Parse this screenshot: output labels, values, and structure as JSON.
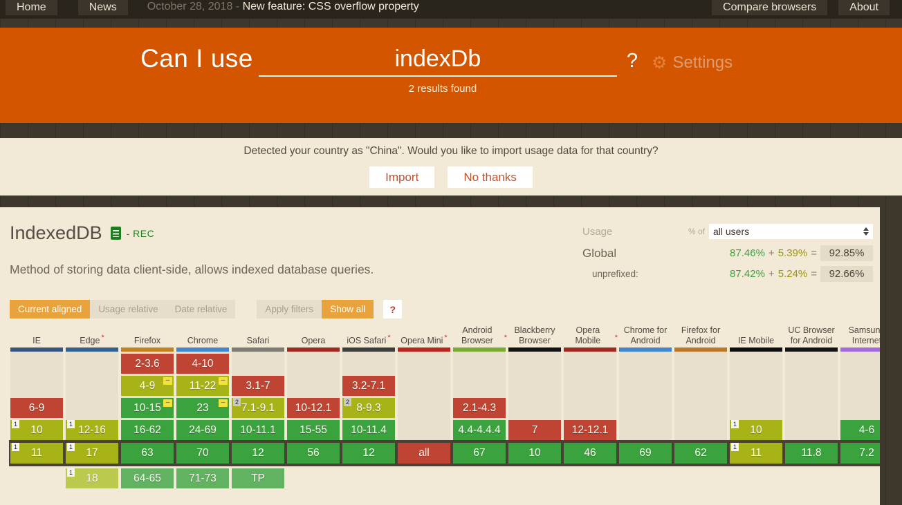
{
  "topbar": {
    "home": "Home",
    "news": "News",
    "date": "October 28, 2018 - ",
    "feature": "New feature: CSS overflow property",
    "compare": "Compare browsers",
    "about": "About"
  },
  "hero": {
    "brand": "Can I use",
    "query": "indexDb",
    "help": "?",
    "settings": "Settings",
    "results": "2 results found",
    "accent_color": "#d45500"
  },
  "country_banner": {
    "message": "Detected your country as \"China\". Would you like to import usage data for that country?",
    "import": "Import",
    "no_thanks": "No thanks"
  },
  "feature": {
    "title": "IndexedDB",
    "status": "- REC",
    "description": "Method of storing data client-side, allows indexed database queries."
  },
  "usage": {
    "label": "Usage",
    "percent_of": "% of",
    "selected_option": "all users",
    "global_label": "Global",
    "global_full": "87.46%",
    "global_partial": "5.39%",
    "global_total": "92.85%",
    "unprefixed_label": "unprefixed:",
    "unprefixed_full": "87.42%",
    "unprefixed_partial": "5.24%",
    "unprefixed_total": "92.66%",
    "plus": "+",
    "equals": "="
  },
  "filters": {
    "current_aligned": "Current aligned",
    "usage_relative": "Usage relative",
    "date_relative": "Date relative",
    "apply_filters": "Apply filters",
    "show_all": "Show all",
    "help": "?"
  },
  "support_table": {
    "colors": {
      "supported": "#3ba33e",
      "partial": "#a8b317",
      "unsupported": "#c04433",
      "future_supported": "#61b261",
      "future_partial": "#bcc94f",
      "current_band": "#4a4136"
    },
    "browsers": [
      {
        "name": "IE",
        "star": false,
        "bar": "#35567E",
        "cells": [
          null,
          null,
          {
            "v": "6-9",
            "t": "red"
          },
          {
            "v": "10",
            "t": "olive",
            "note": "1"
          },
          {
            "v": "11",
            "t": "olive",
            "note": "1"
          },
          null
        ]
      },
      {
        "name": "Edge",
        "star": true,
        "bar": "#31618C",
        "cells": [
          null,
          null,
          null,
          {
            "v": "12-16",
            "t": "olive",
            "note": "1"
          },
          {
            "v": "17",
            "t": "olive",
            "note": "1"
          },
          {
            "v": "18",
            "t": "olive-future",
            "note": "1"
          }
        ]
      },
      {
        "name": "Firefox",
        "star": false,
        "bar": "#C1821F",
        "cells": [
          {
            "v": "2-3.6",
            "t": "red"
          },
          {
            "v": "4-9",
            "t": "olive",
            "prefix": true
          },
          {
            "v": "10-15",
            "t": "green",
            "prefix": true
          },
          {
            "v": "16-62",
            "t": "green"
          },
          {
            "v": "63",
            "t": "green"
          },
          {
            "v": "64-65",
            "t": "green-future"
          }
        ]
      },
      {
        "name": "Chrome",
        "star": false,
        "bar": "#4087CE",
        "cells": [
          {
            "v": "4-10",
            "t": "red"
          },
          {
            "v": "11-22",
            "t": "olive",
            "prefix": true
          },
          {
            "v": "23",
            "t": "green",
            "prefix": true
          },
          {
            "v": "24-69",
            "t": "green"
          },
          {
            "v": "70",
            "t": "green"
          },
          {
            "v": "71-73",
            "t": "green-future"
          }
        ]
      },
      {
        "name": "Safari",
        "star": false,
        "bar": "#7C7C74",
        "cells": [
          null,
          {
            "v": "3.1-7",
            "t": "red"
          },
          {
            "v": "7.1-9.1",
            "t": "olive",
            "note": "2"
          },
          {
            "v": "10-11.1",
            "t": "green"
          },
          {
            "v": "12",
            "t": "green"
          },
          {
            "v": "TP",
            "t": "green-future"
          }
        ]
      },
      {
        "name": "Opera",
        "star": false,
        "bar": "#9E2B22",
        "cells": [
          null,
          null,
          {
            "v": "10-12.1",
            "t": "red"
          },
          {
            "v": "15-55",
            "t": "green"
          },
          {
            "v": "56",
            "t": "green"
          },
          null
        ]
      },
      {
        "name": "iOS Safari",
        "star": true,
        "bar": "#3D3D3B",
        "cells": [
          null,
          {
            "v": "3.2-7.1",
            "t": "red"
          },
          {
            "v": "8-9.3",
            "t": "olive",
            "note": "2"
          },
          {
            "v": "10-11.4",
            "t": "green"
          },
          {
            "v": "12",
            "t": "green"
          },
          null
        ]
      },
      {
        "name": "Opera Mini",
        "star": true,
        "bar": "#B8271E",
        "cells": [
          null,
          null,
          null,
          null,
          {
            "v": "all",
            "t": "red"
          },
          null
        ]
      },
      {
        "name": "Android Browser",
        "star": true,
        "bar": "#77AB33",
        "cells": [
          null,
          null,
          {
            "v": "2.1-4.3",
            "t": "red"
          },
          {
            "v": "4.4-4.4.4",
            "t": "green"
          },
          {
            "v": "67",
            "t": "green"
          },
          null
        ]
      },
      {
        "name": "Blackberry Browser",
        "star": false,
        "bar": "#141414",
        "cells": [
          null,
          null,
          null,
          {
            "v": "7",
            "t": "red"
          },
          {
            "v": "10",
            "t": "green"
          },
          null
        ]
      },
      {
        "name": "Opera Mobile",
        "star": true,
        "bar": "#9E2B22",
        "cells": [
          null,
          null,
          null,
          {
            "v": "12-12.1",
            "t": "red"
          },
          {
            "v": "46",
            "t": "green"
          },
          null
        ]
      },
      {
        "name": "Chrome for Android",
        "star": false,
        "bar": "#4087CE",
        "cells": [
          null,
          null,
          null,
          null,
          {
            "v": "69",
            "t": "green"
          },
          null
        ]
      },
      {
        "name": "Firefox for Android",
        "star": false,
        "bar": "#BB772A",
        "cells": [
          null,
          null,
          null,
          null,
          {
            "v": "62",
            "t": "green"
          },
          null
        ]
      },
      {
        "name": "IE Mobile",
        "star": false,
        "bar": "#0F0F0F",
        "cells": [
          null,
          null,
          null,
          {
            "v": "10",
            "t": "olive",
            "note": "1"
          },
          {
            "v": "11",
            "t": "olive",
            "note": "1"
          },
          null
        ]
      },
      {
        "name": "UC Browser for Android",
        "star": false,
        "bar": "#141414",
        "cells": [
          null,
          null,
          null,
          null,
          {
            "v": "11.8",
            "t": "green"
          },
          null
        ]
      },
      {
        "name": "Samsung Internet",
        "star": false,
        "bar": "#A66AE0",
        "cells": [
          null,
          null,
          null,
          {
            "v": "4-6",
            "t": "green"
          },
          {
            "v": "7.2",
            "t": "green"
          },
          null
        ]
      }
    ]
  }
}
